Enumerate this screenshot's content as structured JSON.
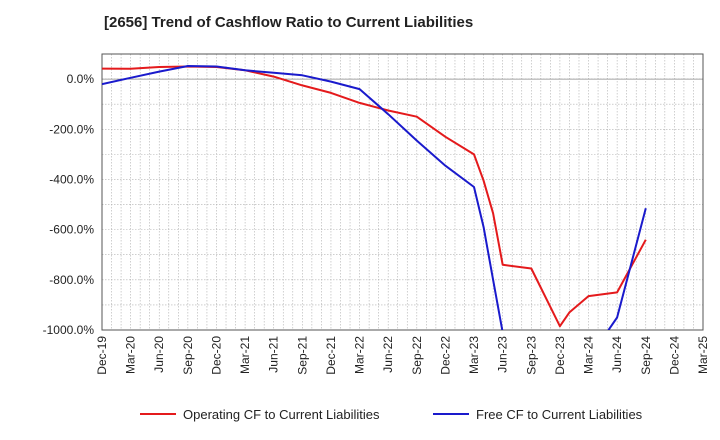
{
  "chart_data": {
    "type": "line",
    "title": "[2656]  Trend of Cashflow Ratio to Current Liabilities",
    "xlabel": "",
    "ylabel": "",
    "ylim": [
      -1000,
      100
    ],
    "yticks": [
      0,
      -200,
      -400,
      -600,
      -800,
      -1000
    ],
    "ytick_labels": [
      "0.0%",
      "-200.0%",
      "-400.0%",
      "-600.0%",
      "-800.0%",
      "-1000.0%"
    ],
    "x_tick_labels": [
      "Dec-19",
      "Mar-20",
      "Jun-20",
      "Sep-20",
      "Dec-20",
      "Mar-21",
      "Jun-21",
      "Sep-21",
      "Dec-21",
      "Mar-22",
      "Jun-22",
      "Sep-22",
      "Dec-22",
      "Mar-23",
      "Jun-23",
      "Sep-23",
      "Dec-23",
      "Mar-24",
      "Jun-24",
      "Sep-24",
      "Dec-24",
      "Mar-25"
    ],
    "grid": true,
    "legend_position": "bottom",
    "series": [
      {
        "name": "Operating CF to Current Liabilities",
        "color": "#e41a1c",
        "x": [
          "Dec-19",
          "Mar-20",
          "Jun-20",
          "Sep-20",
          "Dec-20",
          "Mar-21",
          "Jun-21",
          "Sep-21",
          "Dec-21",
          "Mar-22",
          "Jun-22",
          "Sep-22",
          "Dec-22",
          "Mar-23",
          "Apr-23",
          "May-23",
          "Jun-23",
          "Sep-23",
          "Dec-23",
          "Jan-24",
          "Mar-24",
          "Jun-24",
          "Sep-24"
        ],
        "values": [
          42,
          41,
          48,
          50,
          48,
          35,
          10,
          -25,
          -55,
          -95,
          -125,
          -150,
          -230,
          -300,
          -405,
          -535,
          -740,
          -755,
          -985,
          -930,
          -865,
          -850,
          -640
        ]
      },
      {
        "name": "Free CF to Current Liabilities",
        "color": "#1a1acc",
        "x": [
          "Dec-19",
          "Mar-20",
          "Jun-20",
          "Sep-20",
          "Dec-20",
          "Mar-21",
          "Jun-21",
          "Sep-21",
          "Dec-21",
          "Mar-22",
          "Jun-22",
          "Sep-22",
          "Dec-22",
          "Mar-23",
          "Apr-23",
          "May-23",
          "Jun-23",
          "May-24",
          "Jun-24",
          "Sep-24"
        ],
        "values": [
          -20,
          5,
          30,
          52,
          50,
          35,
          25,
          15,
          -10,
          -40,
          -140,
          -245,
          -345,
          -430,
          -590,
          -800,
          -1010,
          -1005,
          -950,
          -515
        ]
      }
    ]
  }
}
